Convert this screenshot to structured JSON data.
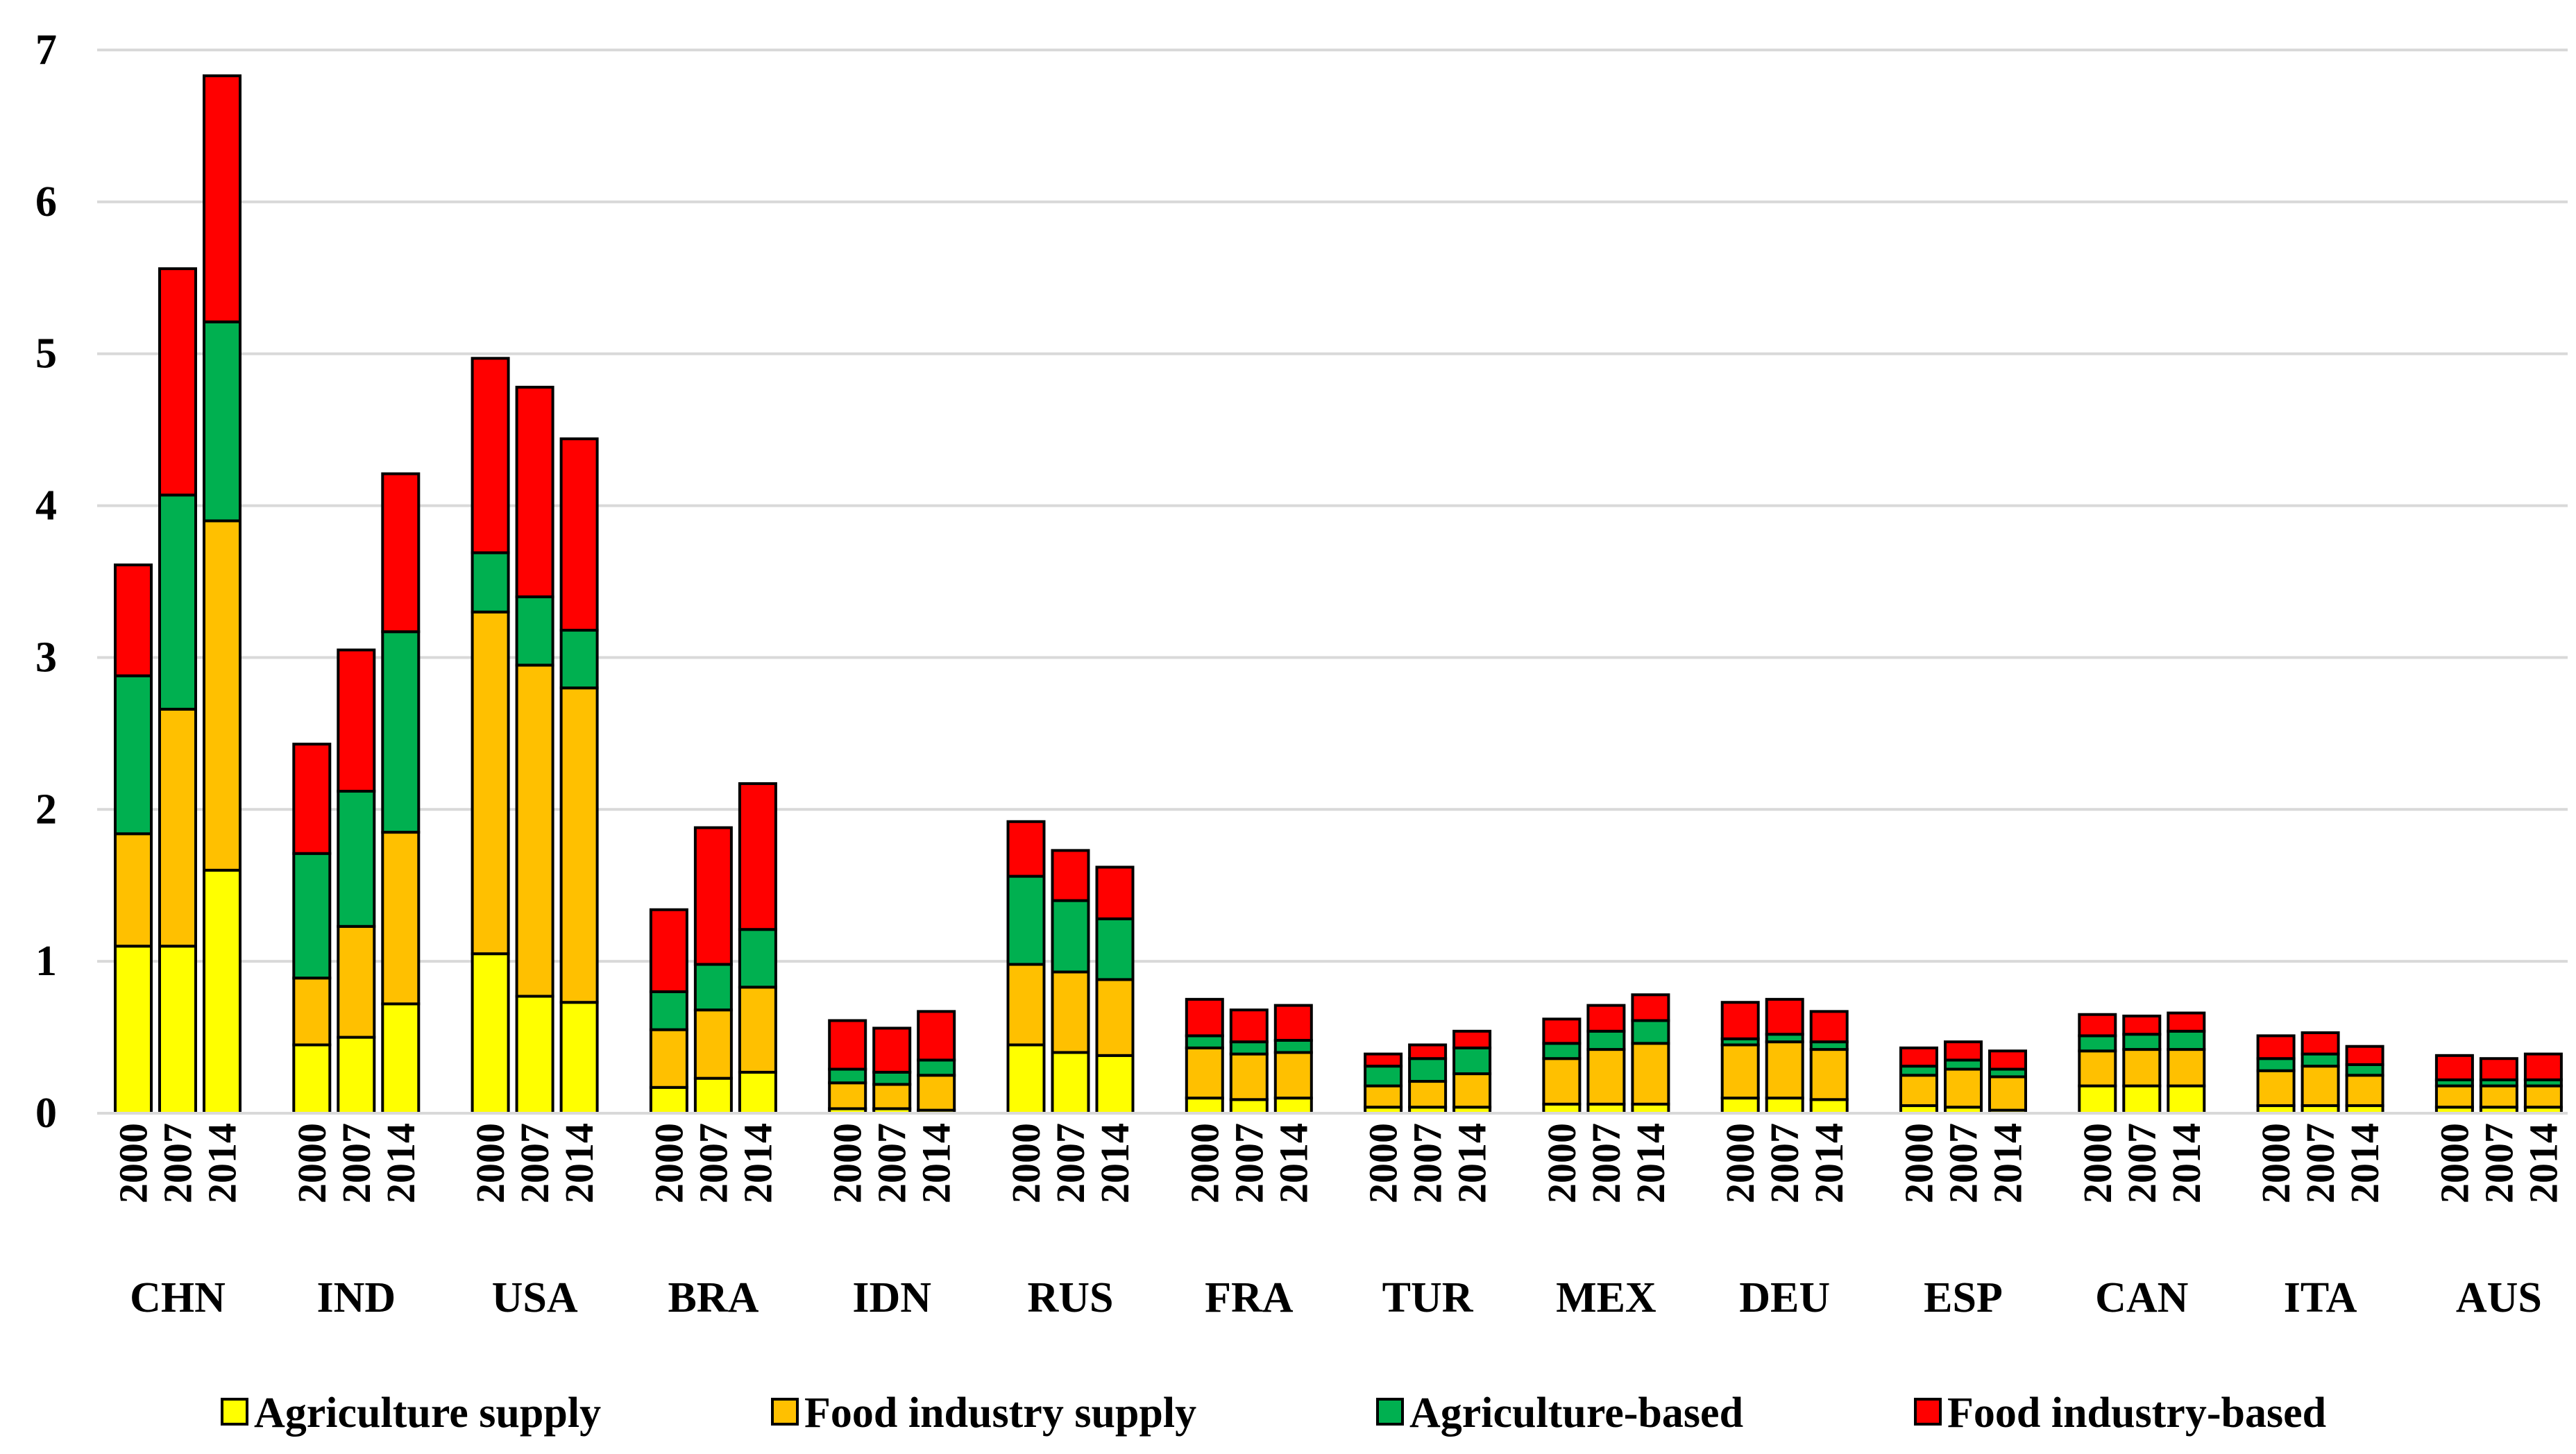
{
  "chart_data": {
    "type": "bar",
    "stacked": true,
    "title": "",
    "xlabel": "",
    "ylabel": "",
    "ylim": [
      0,
      7
    ],
    "yticks": [
      0,
      1,
      2,
      3,
      4,
      5,
      6,
      7
    ],
    "grid": true,
    "legend_position": "bottom",
    "groups": [
      "CHN",
      "IND",
      "USA",
      "BRA",
      "IDN",
      "RUS",
      "FRA",
      "TUR",
      "MEX",
      "DEU",
      "ESP",
      "CAN",
      "ITA",
      "AUS"
    ],
    "years": [
      "2000",
      "2007",
      "2014"
    ],
    "series": [
      {
        "name": "Agriculture supply",
        "color": "#FFFF00",
        "values": [
          [
            1.1,
            1.1,
            1.6
          ],
          [
            0.45,
            0.5,
            0.72
          ],
          [
            1.05,
            0.77,
            0.73
          ],
          [
            0.17,
            0.23,
            0.27
          ],
          [
            0.03,
            0.03,
            0.02
          ],
          [
            0.45,
            0.4,
            0.38
          ],
          [
            0.1,
            0.09,
            0.1
          ],
          [
            0.04,
            0.04,
            0.04
          ],
          [
            0.06,
            0.06,
            0.06
          ],
          [
            0.1,
            0.1,
            0.09
          ],
          [
            0.05,
            0.04,
            0.02
          ],
          [
            0.18,
            0.18,
            0.18
          ],
          [
            0.05,
            0.05,
            0.05
          ],
          [
            0.04,
            0.04,
            0.04
          ]
        ]
      },
      {
        "name": "Food industry supply",
        "color": "#FFC000",
        "values": [
          [
            0.74,
            1.56,
            2.3
          ],
          [
            0.44,
            0.73,
            1.13
          ],
          [
            2.25,
            2.18,
            2.07
          ],
          [
            0.38,
            0.45,
            0.56
          ],
          [
            0.17,
            0.16,
            0.23
          ],
          [
            0.53,
            0.53,
            0.5
          ],
          [
            0.33,
            0.3,
            0.3
          ],
          [
            0.14,
            0.17,
            0.22
          ],
          [
            0.3,
            0.36,
            0.4
          ],
          [
            0.35,
            0.37,
            0.33
          ],
          [
            0.2,
            0.25,
            0.22
          ],
          [
            0.23,
            0.24,
            0.24
          ],
          [
            0.23,
            0.26,
            0.2
          ],
          [
            0.14,
            0.14,
            0.14
          ]
        ]
      },
      {
        "name": "Agriculture-based",
        "color": "#00B050",
        "values": [
          [
            1.04,
            1.41,
            1.31
          ],
          [
            0.82,
            0.89,
            1.32
          ],
          [
            0.39,
            0.45,
            0.38
          ],
          [
            0.25,
            0.3,
            0.38
          ],
          [
            0.09,
            0.08,
            0.1
          ],
          [
            0.58,
            0.47,
            0.4
          ],
          [
            0.08,
            0.08,
            0.08
          ],
          [
            0.13,
            0.15,
            0.17
          ],
          [
            0.1,
            0.12,
            0.15
          ],
          [
            0.04,
            0.05,
            0.05
          ],
          [
            0.06,
            0.06,
            0.05
          ],
          [
            0.1,
            0.1,
            0.12
          ],
          [
            0.08,
            0.08,
            0.07
          ],
          [
            0.04,
            0.04,
            0.04
          ]
        ]
      },
      {
        "name": "Food industry-based",
        "color": "#FF0000",
        "values": [
          [
            0.73,
            1.49,
            1.62
          ],
          [
            0.72,
            0.93,
            1.04
          ],
          [
            1.28,
            1.38,
            1.26
          ],
          [
            0.54,
            0.9,
            0.96
          ],
          [
            0.32,
            0.29,
            0.32
          ],
          [
            0.36,
            0.33,
            0.34
          ],
          [
            0.24,
            0.21,
            0.23
          ],
          [
            0.08,
            0.09,
            0.11
          ],
          [
            0.16,
            0.17,
            0.17
          ],
          [
            0.24,
            0.23,
            0.2
          ],
          [
            0.12,
            0.12,
            0.12
          ],
          [
            0.14,
            0.12,
            0.12
          ],
          [
            0.15,
            0.14,
            0.12
          ],
          [
            0.16,
            0.14,
            0.17
          ]
        ]
      }
    ]
  }
}
